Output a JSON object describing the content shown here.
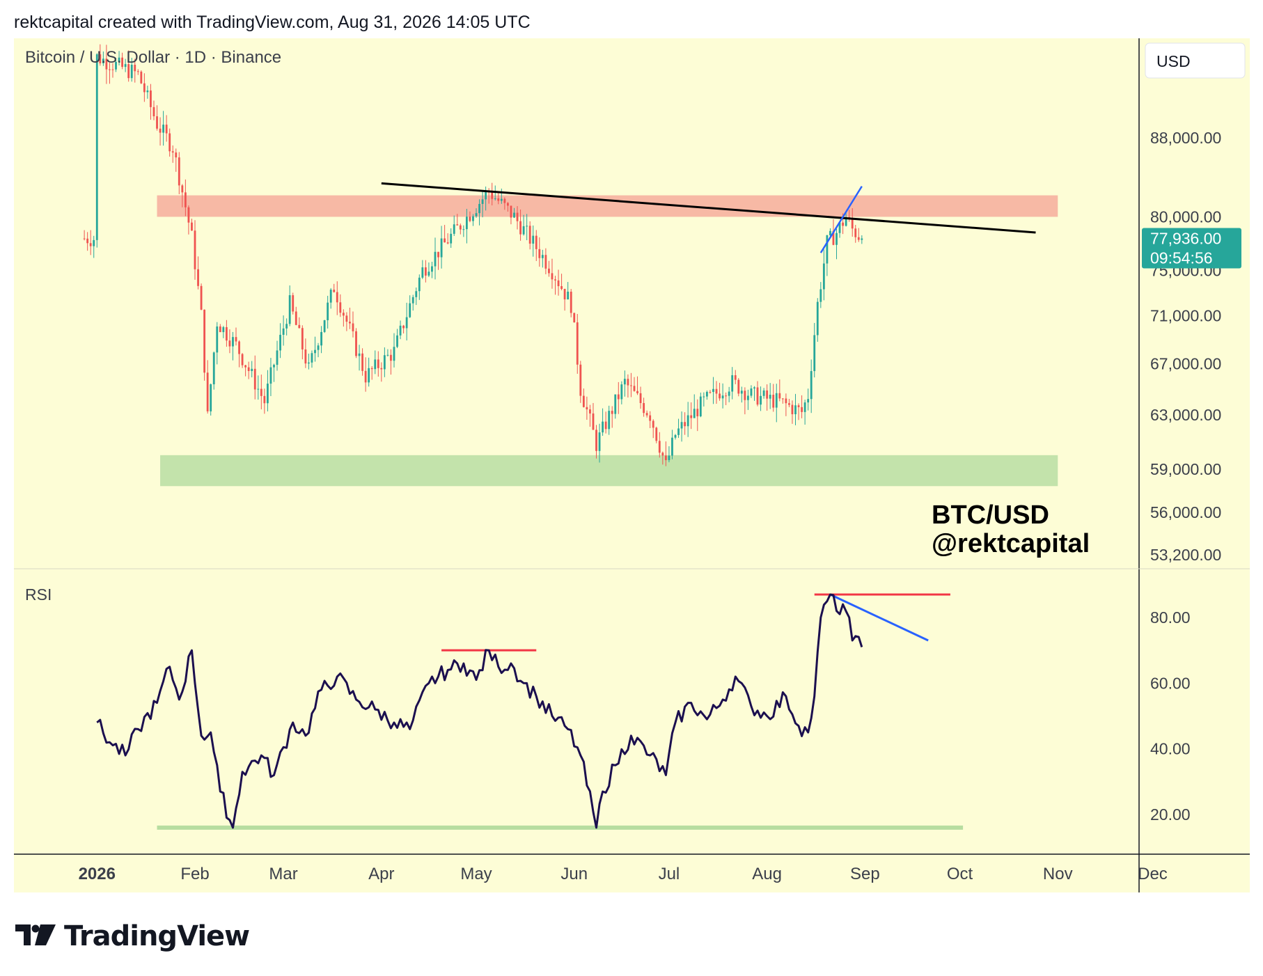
{
  "header": {
    "caption": "rektcapital created with TradingView.com, Aug 31, 2026 14:05 UTC"
  },
  "footer": {
    "brand": "TradingView"
  },
  "colors": {
    "background": "#fdfdd6",
    "up": "#26a69a",
    "down": "#ef5350",
    "resistance_zone": "#f7b9a5",
    "support_zone": "#c3e3ab",
    "trendline": "#000000",
    "blue_line": "#2962ff",
    "red_line": "#f23645",
    "green_line": "#b7dda0",
    "rsi_line": "#1b0f4f",
    "price_tag": "#26a69a"
  },
  "chart_data": [
    {
      "type": "candlestick",
      "title": "Bitcoin / U.S. Dollar · 1D · Binance",
      "currency_label": "USD",
      "watermark": [
        "BTC/USD",
        "@rektcapital"
      ],
      "y_ticks": [
        {
          "value": 88000,
          "label": "88,000.00"
        },
        {
          "value": 80000,
          "label": "80,000.00"
        },
        {
          "value": 75000,
          "label": "75,000.00"
        },
        {
          "value": 71000,
          "label": "71,000.00"
        },
        {
          "value": 67000,
          "label": "67,000.00"
        },
        {
          "value": 63000,
          "label": "63,000.00"
        },
        {
          "value": 59000,
          "label": "59,000.00"
        },
        {
          "value": 56000,
          "label": "56,000.00"
        },
        {
          "value": 53200,
          "label": "53,200.00"
        }
      ],
      "y_scale": "log",
      "last_price": {
        "value": 77936,
        "label": "77,936.00",
        "countdown": "09:54:56"
      },
      "zones": [
        {
          "name": "resistance",
          "from": "2026-01-20",
          "to": "2026-11-01",
          "low": 80000,
          "high": 82100
        },
        {
          "name": "support",
          "from": "2026-01-21",
          "to": "2026-11-01",
          "low": 57800,
          "high": 60000
        }
      ],
      "trendlines": [
        {
          "name": "descending-resistance",
          "color": "black",
          "points": [
            {
              "date": "2026-04-01",
              "value": 83300
            },
            {
              "date": "2026-10-25",
              "value": 78500
            }
          ]
        },
        {
          "name": "rising-wedge-line",
          "color": "blue",
          "points": [
            {
              "date": "2026-08-18",
              "value": 76600
            },
            {
              "date": "2026-08-31",
              "value": 83000
            }
          ]
        }
      ],
      "anchors": [
        {
          "date": "2026-01-01",
          "value": 97000
        },
        {
          "date": "2026-01-14",
          "value": 95000
        },
        {
          "date": "2026-01-20",
          "value": 89500
        },
        {
          "date": "2026-01-25",
          "value": 87000
        },
        {
          "date": "2026-01-31",
          "value": 78000
        },
        {
          "date": "2026-02-03",
          "value": 71000
        },
        {
          "date": "2026-02-05",
          "value": 62800
        },
        {
          "date": "2026-02-08",
          "value": 70500
        },
        {
          "date": "2026-02-14",
          "value": 68500
        },
        {
          "date": "2026-02-23",
          "value": 64000
        },
        {
          "date": "2026-03-03",
          "value": 72000
        },
        {
          "date": "2026-03-09",
          "value": 66500
        },
        {
          "date": "2026-03-17",
          "value": 73500
        },
        {
          "date": "2026-03-27",
          "value": 66000
        },
        {
          "date": "2026-04-05",
          "value": 68000
        },
        {
          "date": "2026-04-14",
          "value": 75000
        },
        {
          "date": "2026-04-24",
          "value": 78500
        },
        {
          "date": "2026-05-05",
          "value": 82500
        },
        {
          "date": "2026-05-13",
          "value": 80000
        },
        {
          "date": "2026-05-25",
          "value": 75000
        },
        {
          "date": "2026-05-31",
          "value": 72000
        },
        {
          "date": "2026-06-03",
          "value": 65000
        },
        {
          "date": "2026-06-08",
          "value": 60800
        },
        {
          "date": "2026-06-17",
          "value": 65500
        },
        {
          "date": "2026-06-25",
          "value": 63000
        },
        {
          "date": "2026-06-30",
          "value": 59200
        },
        {
          "date": "2026-07-03",
          "value": 61500
        },
        {
          "date": "2026-07-12",
          "value": 64000
        },
        {
          "date": "2026-07-21",
          "value": 65500
        },
        {
          "date": "2026-07-27",
          "value": 64500
        },
        {
          "date": "2026-08-05",
          "value": 64000
        },
        {
          "date": "2026-08-12",
          "value": 63200
        },
        {
          "date": "2026-08-14",
          "value": 64500
        },
        {
          "date": "2026-08-17",
          "value": 72000
        },
        {
          "date": "2026-08-20",
          "value": 77500
        },
        {
          "date": "2026-08-23",
          "value": 78500
        },
        {
          "date": "2026-08-26",
          "value": 80000
        },
        {
          "date": "2026-08-28",
          "value": 78800
        },
        {
          "date": "2026-08-31",
          "value": 77936
        }
      ]
    },
    {
      "type": "line",
      "title": "RSI",
      "y_ticks": [
        {
          "value": 80,
          "label": "80.00"
        },
        {
          "value": 60,
          "label": "60.00"
        },
        {
          "value": 40,
          "label": "40.00"
        },
        {
          "value": 20,
          "label": "20.00"
        }
      ],
      "x_ticks": [
        {
          "date": "2026-01-01",
          "label": "2026"
        },
        {
          "date": "2026-02-01",
          "label": "Feb"
        },
        {
          "date": "2026-03-01",
          "label": "Mar"
        },
        {
          "date": "2026-04-01",
          "label": "Apr"
        },
        {
          "date": "2026-05-01",
          "label": "May"
        },
        {
          "date": "2026-06-01",
          "label": "Jun"
        },
        {
          "date": "2026-07-01",
          "label": "Jul"
        },
        {
          "date": "2026-08-01",
          "label": "Aug"
        },
        {
          "date": "2026-09-01",
          "label": "Sep"
        },
        {
          "date": "2026-10-01",
          "label": "Oct"
        },
        {
          "date": "2026-11-01",
          "label": "Nov"
        },
        {
          "date": "2026-12-01",
          "label": "Dec"
        }
      ],
      "rsi_values": [
        {
          "date": "2026-01-01",
          "value": 48
        },
        {
          "date": "2026-01-05",
          "value": 42
        },
        {
          "date": "2026-01-10",
          "value": 38
        },
        {
          "date": "2026-01-14",
          "value": 46
        },
        {
          "date": "2026-01-20",
          "value": 54
        },
        {
          "date": "2026-01-24",
          "value": 65
        },
        {
          "date": "2026-01-27",
          "value": 55
        },
        {
          "date": "2026-01-31",
          "value": 70
        },
        {
          "date": "2026-02-03",
          "value": 44
        },
        {
          "date": "2026-02-06",
          "value": 45
        },
        {
          "date": "2026-02-09",
          "value": 27
        },
        {
          "date": "2026-02-13",
          "value": 16
        },
        {
          "date": "2026-02-16",
          "value": 33
        },
        {
          "date": "2026-02-22",
          "value": 38
        },
        {
          "date": "2026-02-26",
          "value": 32
        },
        {
          "date": "2026-03-04",
          "value": 48
        },
        {
          "date": "2026-03-08",
          "value": 44
        },
        {
          "date": "2026-03-13",
          "value": 58
        },
        {
          "date": "2026-03-18",
          "value": 62
        },
        {
          "date": "2026-03-24",
          "value": 55
        },
        {
          "date": "2026-03-30",
          "value": 52
        },
        {
          "date": "2026-04-05",
          "value": 48
        },
        {
          "date": "2026-04-10",
          "value": 46
        },
        {
          "date": "2026-04-16",
          "value": 60
        },
        {
          "date": "2026-04-22",
          "value": 64
        },
        {
          "date": "2026-04-27",
          "value": 66
        },
        {
          "date": "2026-05-01",
          "value": 61
        },
        {
          "date": "2026-05-05",
          "value": 70
        },
        {
          "date": "2026-05-08",
          "value": 65
        },
        {
          "date": "2026-05-12",
          "value": 66
        },
        {
          "date": "2026-05-16",
          "value": 60
        },
        {
          "date": "2026-05-20",
          "value": 56
        },
        {
          "date": "2026-05-25",
          "value": 50
        },
        {
          "date": "2026-05-30",
          "value": 46
        },
        {
          "date": "2026-06-03",
          "value": 38
        },
        {
          "date": "2026-06-08",
          "value": 16
        },
        {
          "date": "2026-06-10",
          "value": 27
        },
        {
          "date": "2026-06-14",
          "value": 35
        },
        {
          "date": "2026-06-19",
          "value": 44
        },
        {
          "date": "2026-06-25",
          "value": 38
        },
        {
          "date": "2026-06-30",
          "value": 32
        },
        {
          "date": "2026-07-03",
          "value": 48
        },
        {
          "date": "2026-07-08",
          "value": 54
        },
        {
          "date": "2026-07-13",
          "value": 49
        },
        {
          "date": "2026-07-18",
          "value": 55
        },
        {
          "date": "2026-07-22",
          "value": 62
        },
        {
          "date": "2026-07-27",
          "value": 53
        },
        {
          "date": "2026-08-01",
          "value": 50
        },
        {
          "date": "2026-08-07",
          "value": 56
        },
        {
          "date": "2026-08-11",
          "value": 47
        },
        {
          "date": "2026-08-14",
          "value": 45
        },
        {
          "date": "2026-08-16",
          "value": 56
        },
        {
          "date": "2026-08-18",
          "value": 80
        },
        {
          "date": "2026-08-21",
          "value": 87
        },
        {
          "date": "2026-08-23",
          "value": 82
        },
        {
          "date": "2026-08-25",
          "value": 84
        },
        {
          "date": "2026-08-27",
          "value": 80
        },
        {
          "date": "2026-08-28",
          "value": 73
        },
        {
          "date": "2026-08-31",
          "value": 71
        }
      ],
      "annotations": [
        {
          "name": "red-resistance",
          "color": "red",
          "points": [
            {
              "date": "2026-04-20",
              "value": 70
            },
            {
              "date": "2026-05-20",
              "value": 70
            }
          ]
        },
        {
          "name": "red-top",
          "color": "red",
          "points": [
            {
              "date": "2026-08-16",
              "value": 87
            },
            {
              "date": "2026-09-28",
              "value": 87
            }
          ]
        },
        {
          "name": "blue-divergence",
          "color": "blue",
          "points": [
            {
              "date": "2026-08-21",
              "value": 87
            },
            {
              "date": "2026-09-21",
              "value": 73
            }
          ]
        },
        {
          "name": "green-support",
          "color": "green",
          "points": [
            {
              "date": "2026-01-20",
              "value": 16
            },
            {
              "date": "2026-10-02",
              "value": 16
            }
          ]
        }
      ]
    }
  ]
}
